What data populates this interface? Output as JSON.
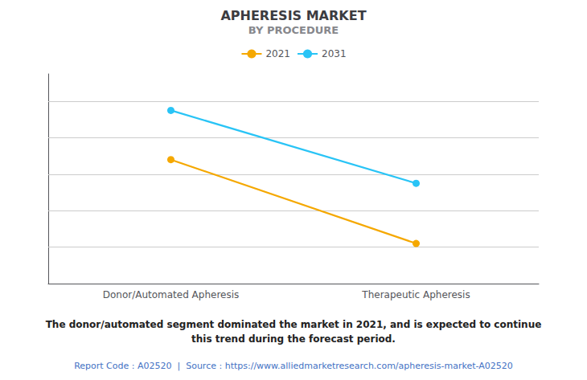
{
  "chart_data": {
    "type": "line",
    "title": "APHERESIS MARKET",
    "subtitle": "BY PROCEDURE",
    "categories": [
      "Donor/Automated Apheresis",
      "Therapeutic Apheresis"
    ],
    "series": [
      {
        "name": "2021",
        "color": "#F5A800",
        "values": [
          0.68,
          0.22
        ]
      },
      {
        "name": "2031",
        "color": "#29C4F6",
        "values": [
          0.95,
          0.55
        ]
      }
    ],
    "ylim": [
      0.0,
      1.15
    ],
    "yticks": [
      0.2,
      0.4,
      0.6,
      0.8,
      1.0
    ],
    "grid": true,
    "tick_labels": "x",
    "legend": "top",
    "marker": "circle",
    "annotations": [
      "The donor/automated segment dominated the market in 2021, and is expected to continue\nthis trend during the forecast period.",
      "Report Code : A02520  |  Source : https://www.alliedmarketresearch.com/apheresis-market-A02520"
    ]
  }
}
